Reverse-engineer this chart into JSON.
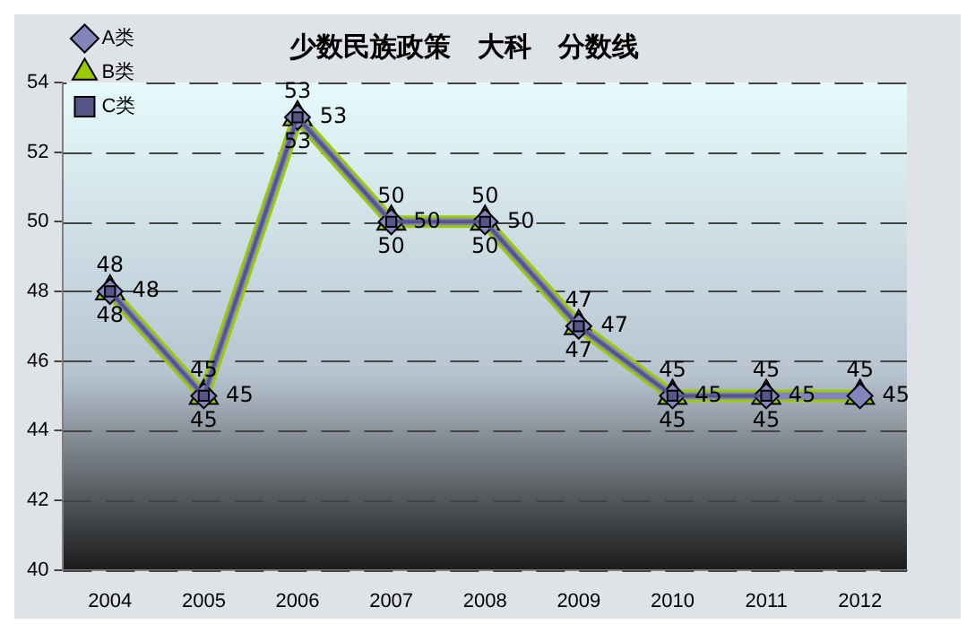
{
  "chart_data": {
    "type": "line",
    "title": "少数民族政策　大科　分数线",
    "categories": [
      "2004",
      "2005",
      "2006",
      "2007",
      "2008",
      "2009",
      "2010",
      "2011",
      "2012"
    ],
    "series": [
      {
        "name": "A类",
        "color": "#8484bc",
        "marker": "diamond",
        "values": [
          48,
          45,
          53,
          50,
          50,
          47,
          45,
          45,
          45
        ]
      },
      {
        "name": "B类",
        "color": "#99cc00",
        "marker": "triangle",
        "values": [
          48,
          45,
          53,
          50,
          50,
          47,
          45,
          45,
          45
        ]
      },
      {
        "name": "C类",
        "color": "#555588",
        "marker": "square",
        "values": [
          48,
          45,
          53,
          50,
          50,
          47,
          45,
          45,
          null
        ]
      }
    ],
    "ylim": [
      40,
      54
    ],
    "yticks": [
      40,
      42,
      44,
      46,
      48,
      50,
      52,
      54
    ],
    "grid": "y",
    "legend": "top left",
    "data_labels": true
  }
}
